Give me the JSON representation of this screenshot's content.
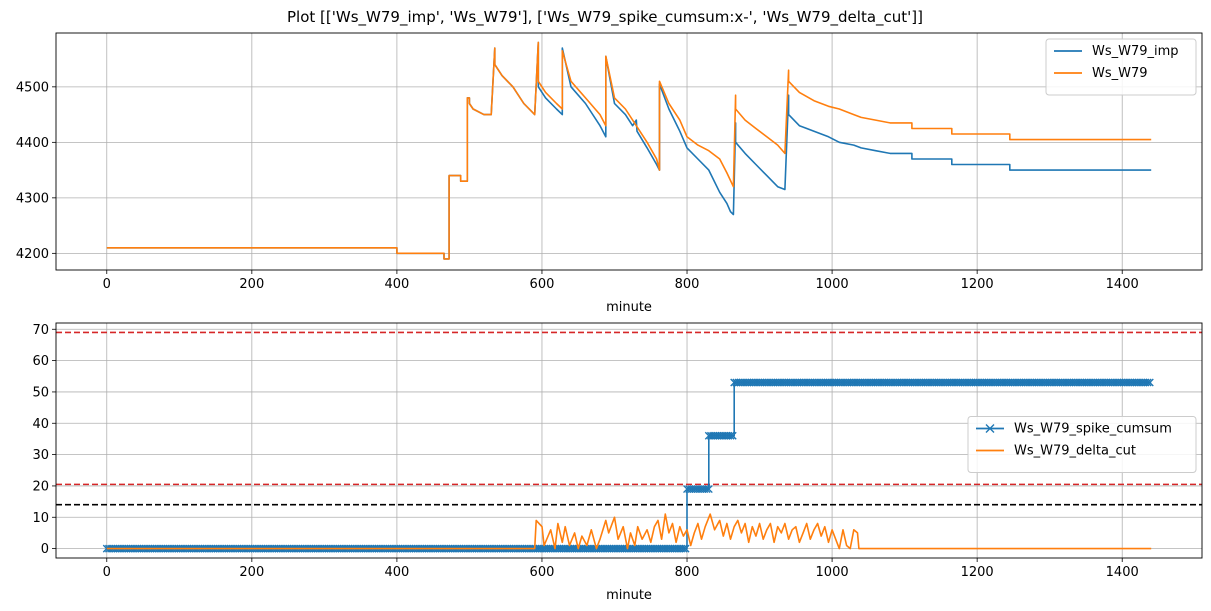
{
  "title": "Plot [['Ws_W79_imp', 'Ws_W79'], ['Ws_W79_spike_cumsum:x-', 'Ws_W79_delta_cut']]",
  "colors": {
    "blue": "#1f77b4",
    "orange": "#ff7f0e",
    "red": "#d62728",
    "black": "#000000",
    "grid": "#b0b0b0"
  },
  "chart_data": [
    {
      "type": "line",
      "xlabel": "minute",
      "ylabel": "",
      "xlim": [
        -70,
        1510
      ],
      "ylim": [
        4170,
        4597
      ],
      "xticks": [
        0,
        200,
        400,
        600,
        800,
        1000,
        1200,
        1400
      ],
      "yticks": [
        4200,
        4300,
        4400,
        4500
      ],
      "grid": true,
      "legend": "top-right",
      "series": [
        {
          "name": "Ws_W79_imp",
          "color": "#1f77b4",
          "x": [
            0,
            400,
            400,
            465,
            465,
            472,
            472,
            488,
            488,
            497,
            497,
            500,
            500,
            505,
            520,
            530,
            535,
            535,
            545,
            560,
            575,
            590,
            595,
            595,
            605,
            620,
            628,
            628,
            640,
            660,
            680,
            688,
            688,
            700,
            715,
            725,
            730,
            731,
            745,
            758,
            762,
            762,
            775,
            790,
            800,
            815,
            830,
            845,
            855,
            860,
            864,
            867,
            867,
            880,
            895,
            910,
            925,
            935,
            940,
            940,
            955,
            975,
            995,
            1010,
            1030,
            1040,
            1060,
            1080,
            1110,
            1110,
            1165,
            1165,
            1245,
            1245,
            1440
          ],
          "y": [
            4210,
            4210,
            4200,
            4200,
            4190,
            4190,
            4340,
            4340,
            4330,
            4330,
            4480,
            4480,
            4470,
            4460,
            4450,
            4450,
            4570,
            4540,
            4520,
            4500,
            4470,
            4450,
            4580,
            4500,
            4480,
            4460,
            4450,
            4570,
            4500,
            4470,
            4430,
            4410,
            4555,
            4470,
            4450,
            4430,
            4440,
            4420,
            4390,
            4360,
            4350,
            4505,
            4460,
            4420,
            4390,
            4370,
            4350,
            4310,
            4290,
            4275,
            4270,
            4435,
            4400,
            4380,
            4360,
            4340,
            4320,
            4315,
            4485,
            4450,
            4430,
            4420,
            4410,
            4400,
            4395,
            4390,
            4385,
            4380,
            4380,
            4370,
            4370,
            4360,
            4360,
            4350,
            4350
          ]
        },
        {
          "name": "Ws_W79",
          "color": "#ff7f0e",
          "x": [
            0,
            400,
            400,
            465,
            465,
            472,
            472,
            488,
            488,
            497,
            497,
            500,
            500,
            505,
            520,
            530,
            535,
            535,
            545,
            560,
            575,
            590,
            595,
            595,
            605,
            620,
            628,
            628,
            640,
            660,
            680,
            688,
            688,
            700,
            715,
            730,
            745,
            758,
            762,
            762,
            775,
            790,
            800,
            815,
            830,
            845,
            855,
            864,
            867,
            867,
            880,
            895,
            910,
            925,
            935,
            940,
            940,
            955,
            975,
            995,
            1010,
            1030,
            1040,
            1060,
            1080,
            1110,
            1110,
            1165,
            1165,
            1245,
            1245,
            1440
          ],
          "y": [
            4210,
            4210,
            4200,
            4200,
            4190,
            4190,
            4340,
            4340,
            4330,
            4330,
            4480,
            4480,
            4470,
            4460,
            4450,
            4450,
            4570,
            4540,
            4520,
            4500,
            4470,
            4450,
            4580,
            4510,
            4490,
            4470,
            4460,
            4565,
            4510,
            4480,
            4450,
            4430,
            4555,
            4480,
            4460,
            4430,
            4400,
            4370,
            4350,
            4510,
            4470,
            4440,
            4410,
            4395,
            4385,
            4370,
            4345,
            4320,
            4485,
            4460,
            4440,
            4425,
            4410,
            4395,
            4380,
            4530,
            4510,
            4490,
            4475,
            4465,
            4460,
            4450,
            4445,
            4440,
            4435,
            4435,
            4425,
            4425,
            4415,
            4415,
            4405,
            4405
          ]
        }
      ]
    },
    {
      "type": "line",
      "xlabel": "minute",
      "ylabel": "",
      "xlim": [
        -70,
        1510
      ],
      "ylim": [
        -3,
        72
      ],
      "xticks": [
        0,
        200,
        400,
        600,
        800,
        1000,
        1200,
        1400
      ],
      "yticks": [
        0,
        10,
        20,
        30,
        40,
        50,
        60,
        70
      ],
      "grid": true,
      "legend": "center-right",
      "hlines": [
        {
          "y": 69,
          "color": "#d62728",
          "style": "dashed"
        },
        {
          "y": 20.5,
          "color": "#d62728",
          "style": "dashed"
        },
        {
          "y": 14,
          "color": "#000000",
          "style": "dashed"
        }
      ],
      "series": [
        {
          "name": "Ws_W79_spike_cumsum",
          "color": "#1f77b4",
          "marker": "x",
          "x": [
            0,
            800,
            800,
            830,
            830,
            865,
            865,
            1440
          ],
          "y": [
            0,
            0,
            19,
            19,
            36,
            36,
            53,
            53
          ]
        },
        {
          "name": "Ws_W79_delta_cut",
          "color": "#ff7f0e",
          "x": [
            0,
            590,
            592,
            600,
            603,
            612,
            618,
            622,
            628,
            632,
            638,
            645,
            650,
            655,
            662,
            668,
            675,
            680,
            688,
            692,
            700,
            705,
            712,
            718,
            722,
            728,
            732,
            738,
            745,
            750,
            755,
            760,
            765,
            770,
            775,
            780,
            785,
            790,
            795,
            800,
            805,
            810,
            815,
            820,
            825,
            832,
            838,
            845,
            850,
            855,
            860,
            865,
            870,
            875,
            880,
            885,
            890,
            895,
            900,
            905,
            910,
            915,
            920,
            925,
            930,
            935,
            940,
            945,
            950,
            955,
            960,
            965,
            970,
            975,
            980,
            985,
            990,
            995,
            1000,
            1010,
            1015,
            1020,
            1025,
            1030,
            1035,
            1037,
            1440
          ],
          "y": [
            0,
            0,
            9,
            7,
            1,
            6,
            0,
            8,
            2,
            7,
            1,
            5,
            0,
            4,
            1,
            6,
            0,
            3,
            9,
            5,
            10,
            3,
            7,
            0,
            5,
            1,
            7,
            3,
            6,
            2,
            7,
            9,
            3,
            11,
            5,
            8,
            2,
            7,
            4,
            6,
            1,
            5,
            8,
            3,
            7,
            11,
            6,
            9,
            4,
            8,
            3,
            7,
            9,
            5,
            8,
            2,
            7,
            4,
            8,
            3,
            6,
            8,
            2,
            7,
            5,
            8,
            3,
            6,
            7,
            2,
            5,
            8,
            3,
            6,
            8,
            4,
            7,
            2,
            6,
            0,
            6,
            1,
            0,
            6,
            5,
            0,
            0
          ]
        }
      ]
    }
  ]
}
